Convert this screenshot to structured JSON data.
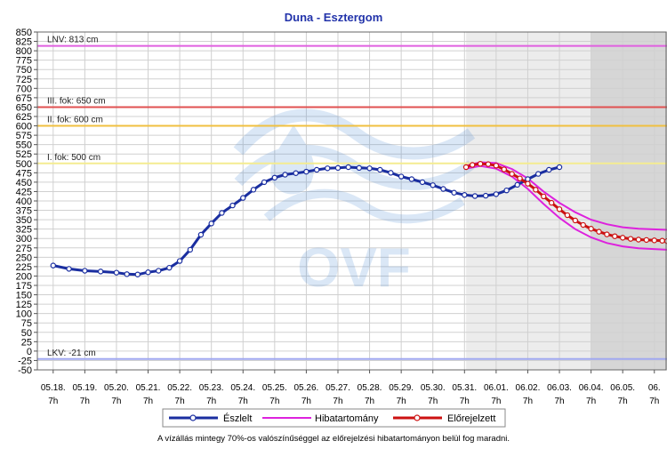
{
  "chart_data": {
    "type": "line",
    "title": "Duna - Esztergom",
    "ylim": [
      -50,
      850
    ],
    "y_ticks": [
      -50,
      -25,
      0,
      25,
      50,
      75,
      100,
      125,
      150,
      175,
      200,
      225,
      250,
      275,
      300,
      325,
      350,
      375,
      400,
      425,
      450,
      475,
      500,
      525,
      550,
      575,
      600,
      625,
      650,
      675,
      700,
      725,
      750,
      775,
      800,
      825,
      850
    ],
    "y_tick_labels": [
      "-50",
      "-25",
      "0",
      "25",
      "50",
      "75",
      "100",
      "125",
      "150",
      "175",
      "200",
      "225",
      "250",
      "275",
      "300",
      "325",
      "350",
      "375",
      "400",
      "425",
      "450",
      "475",
      "500",
      "525",
      "550",
      "575",
      "600",
      "625",
      "650",
      "675",
      "700",
      "725",
      "750",
      "775",
      "800",
      "825",
      "850"
    ],
    "x_start_day": 17.5,
    "x_end_day": 37.4,
    "x_tick_days": [
      18,
      19,
      20,
      21,
      22,
      23,
      24,
      25,
      26,
      27,
      28,
      29,
      30,
      31,
      32,
      33,
      34,
      35,
      36,
      37
    ],
    "x_tick_labels": [
      "05.18.",
      "05.19.",
      "05.20.",
      "05.21.",
      "05.22.",
      "05.23.",
      "05.24.",
      "05.25.",
      "05.26.",
      "05.27.",
      "05.28.",
      "05.29.",
      "05.30.",
      "05.31.",
      "06.01.",
      "06.02.",
      "06.03.",
      "06.04.",
      "06.05.",
      "06."
    ],
    "x_hour_label": "7h",
    "forecast_start_day": 31.05,
    "forecast_dark_start_day": 35.0,
    "thresholds": [
      {
        "label": "LNV: 813 cm",
        "value": 813,
        "color": "#e060e0"
      },
      {
        "label": "III. fok: 650 cm",
        "value": 650,
        "color": "#e05050"
      },
      {
        "label": "II. fok: 600 cm",
        "value": 600,
        "color": "#f0c040"
      },
      {
        "label": "I. fok: 500 cm",
        "value": 500,
        "color": "#f4ec90"
      },
      {
        "label": "LKV: -21 cm",
        "value": -21,
        "color": "#a0a8f0"
      }
    ],
    "series": [
      {
        "name": "Észlelt",
        "color": "#1a2ea0",
        "points": [
          [
            18.0,
            228
          ],
          [
            18.5,
            219
          ],
          [
            19.0,
            214
          ],
          [
            19.5,
            212
          ],
          [
            20.0,
            209
          ],
          [
            20.33,
            205
          ],
          [
            20.67,
            204
          ],
          [
            21.0,
            210
          ],
          [
            21.33,
            214
          ],
          [
            21.67,
            222
          ],
          [
            22.0,
            240
          ],
          [
            22.33,
            270
          ],
          [
            22.67,
            310
          ],
          [
            23.0,
            340
          ],
          [
            23.33,
            368
          ],
          [
            23.67,
            388
          ],
          [
            24.0,
            408
          ],
          [
            24.33,
            430
          ],
          [
            24.67,
            450
          ],
          [
            25.0,
            462
          ],
          [
            25.33,
            470
          ],
          [
            25.67,
            474
          ],
          [
            26.0,
            478
          ],
          [
            26.33,
            483
          ],
          [
            26.67,
            487
          ],
          [
            27.0,
            488
          ],
          [
            27.33,
            490
          ],
          [
            27.67,
            488
          ],
          [
            28.0,
            487
          ],
          [
            28.33,
            483
          ],
          [
            28.67,
            475
          ],
          [
            29.0,
            465
          ],
          [
            29.33,
            458
          ],
          [
            29.67,
            450
          ],
          [
            30.0,
            442
          ],
          [
            30.33,
            432
          ],
          [
            30.67,
            422
          ],
          [
            31.0,
            416
          ],
          [
            31.33,
            413
          ],
          [
            31.67,
            414
          ],
          [
            32.0,
            418
          ],
          [
            32.33,
            428
          ],
          [
            32.67,
            443
          ],
          [
            33.0,
            458
          ],
          [
            33.33,
            472
          ],
          [
            33.67,
            483
          ],
          [
            34.0,
            490
          ]
        ]
      },
      {
        "name": "Hibatartomány",
        "color": "#dd22dd",
        "upper": [
          [
            31.05,
            494
          ],
          [
            31.5,
            503
          ],
          [
            32.0,
            501
          ],
          [
            32.5,
            485
          ],
          [
            33.0,
            460
          ],
          [
            33.5,
            425
          ],
          [
            34.0,
            395
          ],
          [
            34.5,
            370
          ],
          [
            35.0,
            350
          ],
          [
            35.5,
            338
          ],
          [
            36.0,
            330
          ],
          [
            36.5,
            326
          ],
          [
            37.4,
            323
          ]
        ],
        "lower": [
          [
            31.05,
            486
          ],
          [
            31.5,
            493
          ],
          [
            32.0,
            486
          ],
          [
            32.5,
            465
          ],
          [
            33.0,
            432
          ],
          [
            33.5,
            392
          ],
          [
            34.0,
            355
          ],
          [
            34.5,
            325
          ],
          [
            35.0,
            303
          ],
          [
            35.5,
            288
          ],
          [
            36.0,
            279
          ],
          [
            36.5,
            274
          ],
          [
            37.4,
            270
          ]
        ]
      },
      {
        "name": "Előrejelzett",
        "color": "#cc1111",
        "points": [
          [
            31.05,
            490
          ],
          [
            31.25,
            496
          ],
          [
            31.5,
            499
          ],
          [
            31.75,
            498
          ],
          [
            32.0,
            494
          ],
          [
            32.25,
            484
          ],
          [
            32.5,
            472
          ],
          [
            32.75,
            460
          ],
          [
            33.0,
            446
          ],
          [
            33.25,
            430
          ],
          [
            33.5,
            412
          ],
          [
            33.75,
            395
          ],
          [
            34.0,
            378
          ],
          [
            34.25,
            362
          ],
          [
            34.5,
            348
          ],
          [
            34.75,
            336
          ],
          [
            35.0,
            326
          ],
          [
            35.25,
            318
          ],
          [
            35.5,
            311
          ],
          [
            35.75,
            306
          ],
          [
            36.0,
            302
          ],
          [
            36.25,
            299
          ],
          [
            36.5,
            297
          ],
          [
            36.75,
            296
          ],
          [
            37.0,
            295
          ],
          [
            37.25,
            294
          ],
          [
            37.4,
            293
          ]
        ]
      }
    ],
    "legend": [
      "Észlelt",
      "Hibatartomány",
      "Előrejelzett"
    ],
    "watermark": "OVF",
    "footnote": "A vízállás mintegy 70%-os valószínűséggel az előrejelzési hibatartományon belül fog maradni."
  }
}
